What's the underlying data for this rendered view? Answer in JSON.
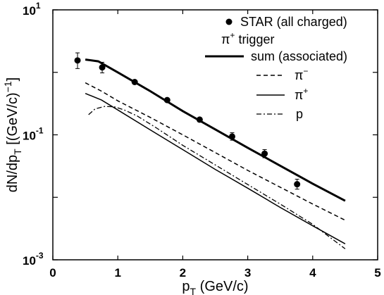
{
  "chart_data": {
    "type": "scatter",
    "xlabel_main": "p",
    "xlabel_sub": "T",
    "xlabel_rest": " (GeV/c)",
    "ylabel_main": "dN/dp",
    "ylabel_sub": "T",
    "ylabel_rest": " [(GeV/c)",
    "ylabel_sup": "−1",
    "ylabel_close": "]",
    "xlim": [
      0,
      5
    ],
    "ylim": [
      0.001,
      10
    ],
    "yscale": "log",
    "x_ticks": [
      "0",
      "1",
      "2",
      "3",
      "4",
      "5"
    ],
    "y_ticks": [
      {
        "base": "10",
        "exp": "1",
        "value": 10
      },
      {
        "base": "10",
        "exp": "-1",
        "value": 0.1
      },
      {
        "base": "10",
        "exp": "-3",
        "value": 0.001
      }
    ],
    "legend": {
      "position": "top-right",
      "star_label": "STAR (all charged)",
      "trigger_base": "π",
      "trigger_sup": "+",
      "trigger_rest": " trigger",
      "sum_label": "sum (associated)",
      "pim_base": "π",
      "pim_sup": "−",
      "pip_base": "π",
      "pip_sup": "+",
      "p_label": "p"
    },
    "star_points": [
      {
        "x": 0.38,
        "y": 1.55,
        "yerr_lo": 1.15,
        "yerr_hi": 2.05
      },
      {
        "x": 0.76,
        "y": 1.2,
        "yerr_lo": 0.98,
        "yerr_hi": 1.45
      },
      {
        "x": 1.26,
        "y": 0.7
      },
      {
        "x": 1.76,
        "y": 0.36
      },
      {
        "x": 2.26,
        "y": 0.175
      },
      {
        "x": 2.76,
        "y": 0.094,
        "yerr_lo": 0.082,
        "yerr_hi": 0.108
      },
      {
        "x": 3.26,
        "y": 0.05,
        "yerr_lo": 0.043,
        "yerr_hi": 0.058
      },
      {
        "x": 3.76,
        "y": 0.0162,
        "yerr_lo": 0.0135,
        "yerr_hi": 0.0195
      }
    ],
    "series": [
      {
        "key": "sum",
        "name": "sum (associated)",
        "style": "solid-thick",
        "x": [
          0.5,
          0.7,
          1.0,
          1.5,
          2.0,
          2.5,
          3.0,
          3.5,
          4.0,
          4.5
        ],
        "y": [
          1.6,
          1.5,
          1.0,
          0.5,
          0.24,
          0.122,
          0.062,
          0.032,
          0.0165,
          0.0088
        ]
      },
      {
        "key": "pim",
        "name": "π−",
        "style": "dashed",
        "x": [
          0.5,
          0.75,
          1.0,
          1.5,
          2.0,
          2.5,
          3.0,
          3.5,
          4.0,
          4.5
        ],
        "y": [
          0.68,
          0.5,
          0.35,
          0.19,
          0.1,
          0.052,
          0.027,
          0.0145,
          0.0078,
          0.0043
        ]
      },
      {
        "key": "pip",
        "name": "π+",
        "style": "solid-thin",
        "x": [
          0.5,
          0.75,
          1.0,
          1.5,
          2.0,
          2.5,
          3.0,
          3.5,
          4.0,
          4.5
        ],
        "y": [
          0.46,
          0.36,
          0.25,
          0.12,
          0.058,
          0.028,
          0.014,
          0.0069,
          0.0035,
          0.0018
        ]
      },
      {
        "key": "p",
        "name": "p",
        "style": "dashdot",
        "x": [
          0.55,
          0.65,
          0.8,
          0.95,
          1.1,
          1.3,
          1.6,
          2.0,
          2.5,
          3.0,
          3.5,
          4.0,
          4.5
        ],
        "y": [
          0.21,
          0.26,
          0.285,
          0.28,
          0.25,
          0.2,
          0.128,
          0.068,
          0.033,
          0.016,
          0.0078,
          0.0037,
          0.0015
        ]
      }
    ]
  }
}
